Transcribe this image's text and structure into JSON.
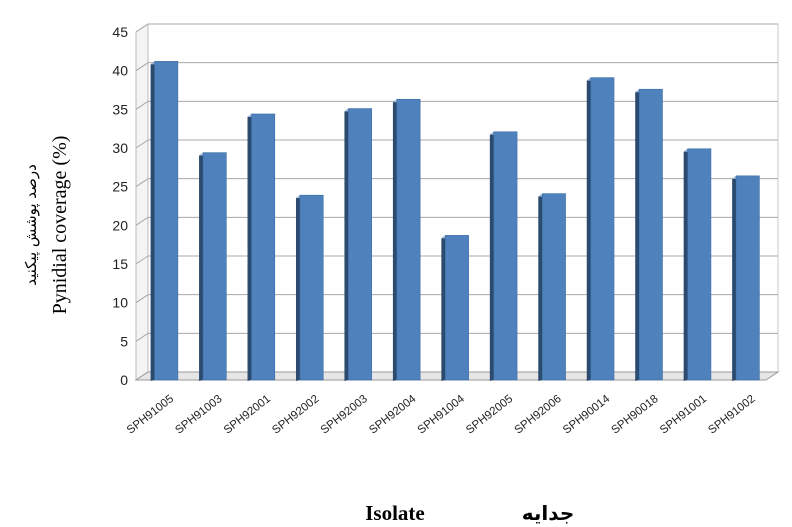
{
  "chart_data": {
    "type": "bar",
    "categories": [
      "SPH91005",
      "SPH91003",
      "SPH92001",
      "SPH92002",
      "SPH92003",
      "SPH92004",
      "SPH91004",
      "SPH92005",
      "SPH92006",
      "SPH90014",
      "SPH90018",
      "SPH91001",
      "SPH91002"
    ],
    "values": [
      41.2,
      29.4,
      34.4,
      23.9,
      35.1,
      36.3,
      18.7,
      32.1,
      24.1,
      39.1,
      37.6,
      29.9,
      26.4
    ],
    "ylabel_fa": "درصد پوشش پیکنید",
    "ylabel_en": "Pynidial coverage (%)",
    "xlabel_en": "Isolate",
    "xlabel_fa": "جدایه",
    "ylim": [
      0,
      45
    ],
    "yticks": [
      0,
      5,
      10,
      15,
      20,
      25,
      30,
      35,
      40,
      45
    ],
    "grid": true,
    "bar_color": "#4f81bd"
  }
}
